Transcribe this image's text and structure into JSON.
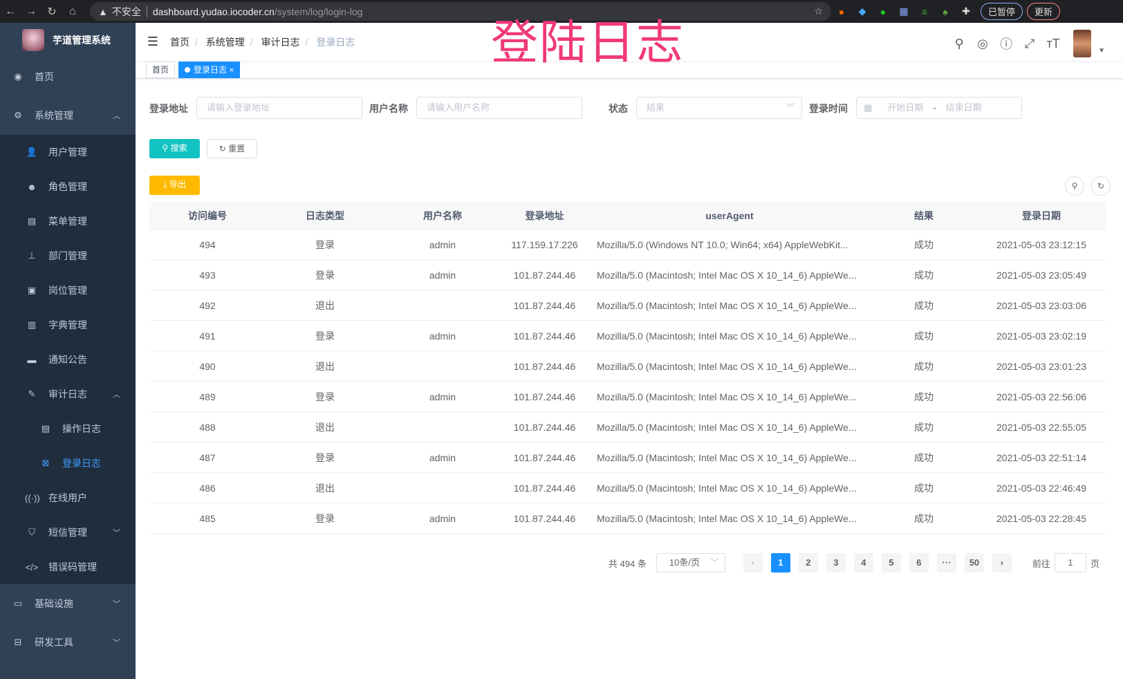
{
  "browser": {
    "insecure": "不安全",
    "host": "dashboard.yudao.iocoder.cn",
    "path": "/system/log/login-log",
    "paused": "已暂停",
    "update": "更新"
  },
  "overlay_title": "登陆日志",
  "sidebar": {
    "app_title": "芋道管理系统",
    "items": [
      {
        "label": "首页",
        "icon": "dashboard-icon"
      },
      {
        "label": "系统管理",
        "icon": "gear-icon",
        "expanded": true,
        "children": [
          {
            "label": "用户管理",
            "icon": "user-icon"
          },
          {
            "label": "角色管理",
            "icon": "peoples-icon"
          },
          {
            "label": "菜单管理",
            "icon": "tree-table-icon"
          },
          {
            "label": "部门管理",
            "icon": "tree-icon"
          },
          {
            "label": "岗位管理",
            "icon": "post-icon"
          },
          {
            "label": "字典管理",
            "icon": "dict-icon"
          },
          {
            "label": "通知公告",
            "icon": "message-icon"
          },
          {
            "label": "审计日志",
            "icon": "log-icon",
            "expanded": true,
            "children": [
              {
                "label": "操作日志",
                "icon": "form-icon"
              },
              {
                "label": "登录日志",
                "icon": "logininfor-icon",
                "active": true
              }
            ]
          },
          {
            "label": "在线用户",
            "icon": "online-icon"
          },
          {
            "label": "短信管理",
            "icon": "shield-icon"
          },
          {
            "label": "错误码管理",
            "icon": "code-icon"
          }
        ]
      },
      {
        "label": "基础设施",
        "icon": "monitor-icon"
      },
      {
        "label": "研发工具",
        "icon": "tool-icon"
      }
    ]
  },
  "breadcrumb": [
    "首页",
    "系统管理",
    "审计日志",
    "登录日志"
  ],
  "tags": [
    {
      "label": "首页"
    },
    {
      "label": "登录日志",
      "active": true
    }
  ],
  "search": {
    "ip_label": "登录地址",
    "ip_placeholder": "请输入登录地址",
    "user_label": "用户名称",
    "user_placeholder": "请输入用户名称",
    "status_label": "状态",
    "status_placeholder": "结果",
    "time_label": "登录时间",
    "start_placeholder": "开始日期",
    "range_sep": "-",
    "end_placeholder": "结束日期",
    "search_btn": "搜索",
    "reset_btn": "重置",
    "export_btn": "导出"
  },
  "table": {
    "columns": [
      "访问编号",
      "日志类型",
      "用户名称",
      "登录地址",
      "userAgent",
      "结果",
      "登录日期"
    ],
    "rows": [
      [
        "494",
        "登录",
        "admin",
        "117.159.17.226",
        "Mozilla/5.0 (Windows NT 10.0; Win64; x64) AppleWebKit...",
        "成功",
        "2021-05-03 23:12:15"
      ],
      [
        "493",
        "登录",
        "admin",
        "101.87.244.46",
        "Mozilla/5.0 (Macintosh; Intel Mac OS X 10_14_6) AppleWe...",
        "成功",
        "2021-05-03 23:05:49"
      ],
      [
        "492",
        "退出",
        "",
        "101.87.244.46",
        "Mozilla/5.0 (Macintosh; Intel Mac OS X 10_14_6) AppleWe...",
        "成功",
        "2021-05-03 23:03:06"
      ],
      [
        "491",
        "登录",
        "admin",
        "101.87.244.46",
        "Mozilla/5.0 (Macintosh; Intel Mac OS X 10_14_6) AppleWe...",
        "成功",
        "2021-05-03 23:02:19"
      ],
      [
        "490",
        "退出",
        "",
        "101.87.244.46",
        "Mozilla/5.0 (Macintosh; Intel Mac OS X 10_14_6) AppleWe...",
        "成功",
        "2021-05-03 23:01:23"
      ],
      [
        "489",
        "登录",
        "admin",
        "101.87.244.46",
        "Mozilla/5.0 (Macintosh; Intel Mac OS X 10_14_6) AppleWe...",
        "成功",
        "2021-05-03 22:56:06"
      ],
      [
        "488",
        "退出",
        "",
        "101.87.244.46",
        "Mozilla/5.0 (Macintosh; Intel Mac OS X 10_14_6) AppleWe...",
        "成功",
        "2021-05-03 22:55:05"
      ],
      [
        "487",
        "登录",
        "admin",
        "101.87.244.46",
        "Mozilla/5.0 (Macintosh; Intel Mac OS X 10_14_6) AppleWe...",
        "成功",
        "2021-05-03 22:51:14"
      ],
      [
        "486",
        "退出",
        "",
        "101.87.244.46",
        "Mozilla/5.0 (Macintosh; Intel Mac OS X 10_14_6) AppleWe...",
        "成功",
        "2021-05-03 22:46:49"
      ],
      [
        "485",
        "登录",
        "admin",
        "101.87.244.46",
        "Mozilla/5.0 (Macintosh; Intel Mac OS X 10_14_6) AppleWe...",
        "成功",
        "2021-05-03 22:28:45"
      ]
    ]
  },
  "pagination": {
    "total": "共 494 条",
    "page_size": "10条/页",
    "pages": [
      "1",
      "2",
      "3",
      "4",
      "5",
      "6",
      "···",
      "50"
    ],
    "current": "1",
    "goto_label": "前往",
    "goto_value": "1",
    "goto_suffix": "页"
  },
  "colors": {
    "sidebar": "#304156",
    "primary": "#1890ff",
    "search": "#13c2c2",
    "export": "#ffba00",
    "overlay": "#f0397a"
  }
}
